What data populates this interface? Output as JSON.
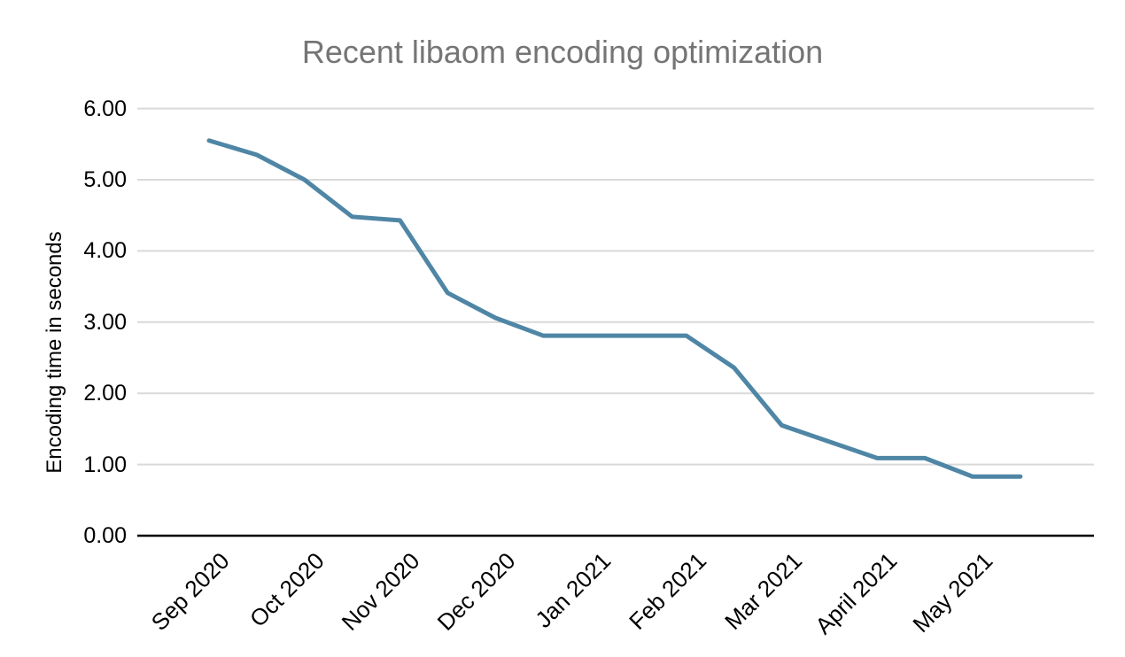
{
  "chart_data": {
    "type": "line",
    "title": "Recent libaom encoding optimization",
    "ylabel": "Encoding time in seconds",
    "xlabel": "",
    "ylim": [
      0,
      6
    ],
    "y_ticks": [
      "0.00",
      "1.00",
      "2.00",
      "3.00",
      "4.00",
      "5.00",
      "6.00"
    ],
    "x_tick_labels": [
      "Sep 2020",
      "Oct 2020",
      "Nov 2020",
      "Dec 2020",
      "Jan 2021",
      "Feb 2021",
      "Mar 2021",
      "April 2021",
      "May 2021"
    ],
    "points_per_month": 2,
    "series": [
      {
        "name": "Encoding time in seconds",
        "values": [
          5.55,
          5.35,
          5.0,
          4.48,
          4.43,
          3.41,
          3.06,
          2.81,
          2.81,
          2.81,
          2.81,
          2.36,
          1.55,
          1.32,
          1.09,
          1.09,
          0.83,
          0.83
        ]
      }
    ],
    "legend": "none",
    "grid": true,
    "colors": {
      "line": "#4f86a5",
      "grid": "#d9d9d9",
      "axis": "#000000",
      "title": "#757575",
      "tick_label": "#000000"
    }
  }
}
